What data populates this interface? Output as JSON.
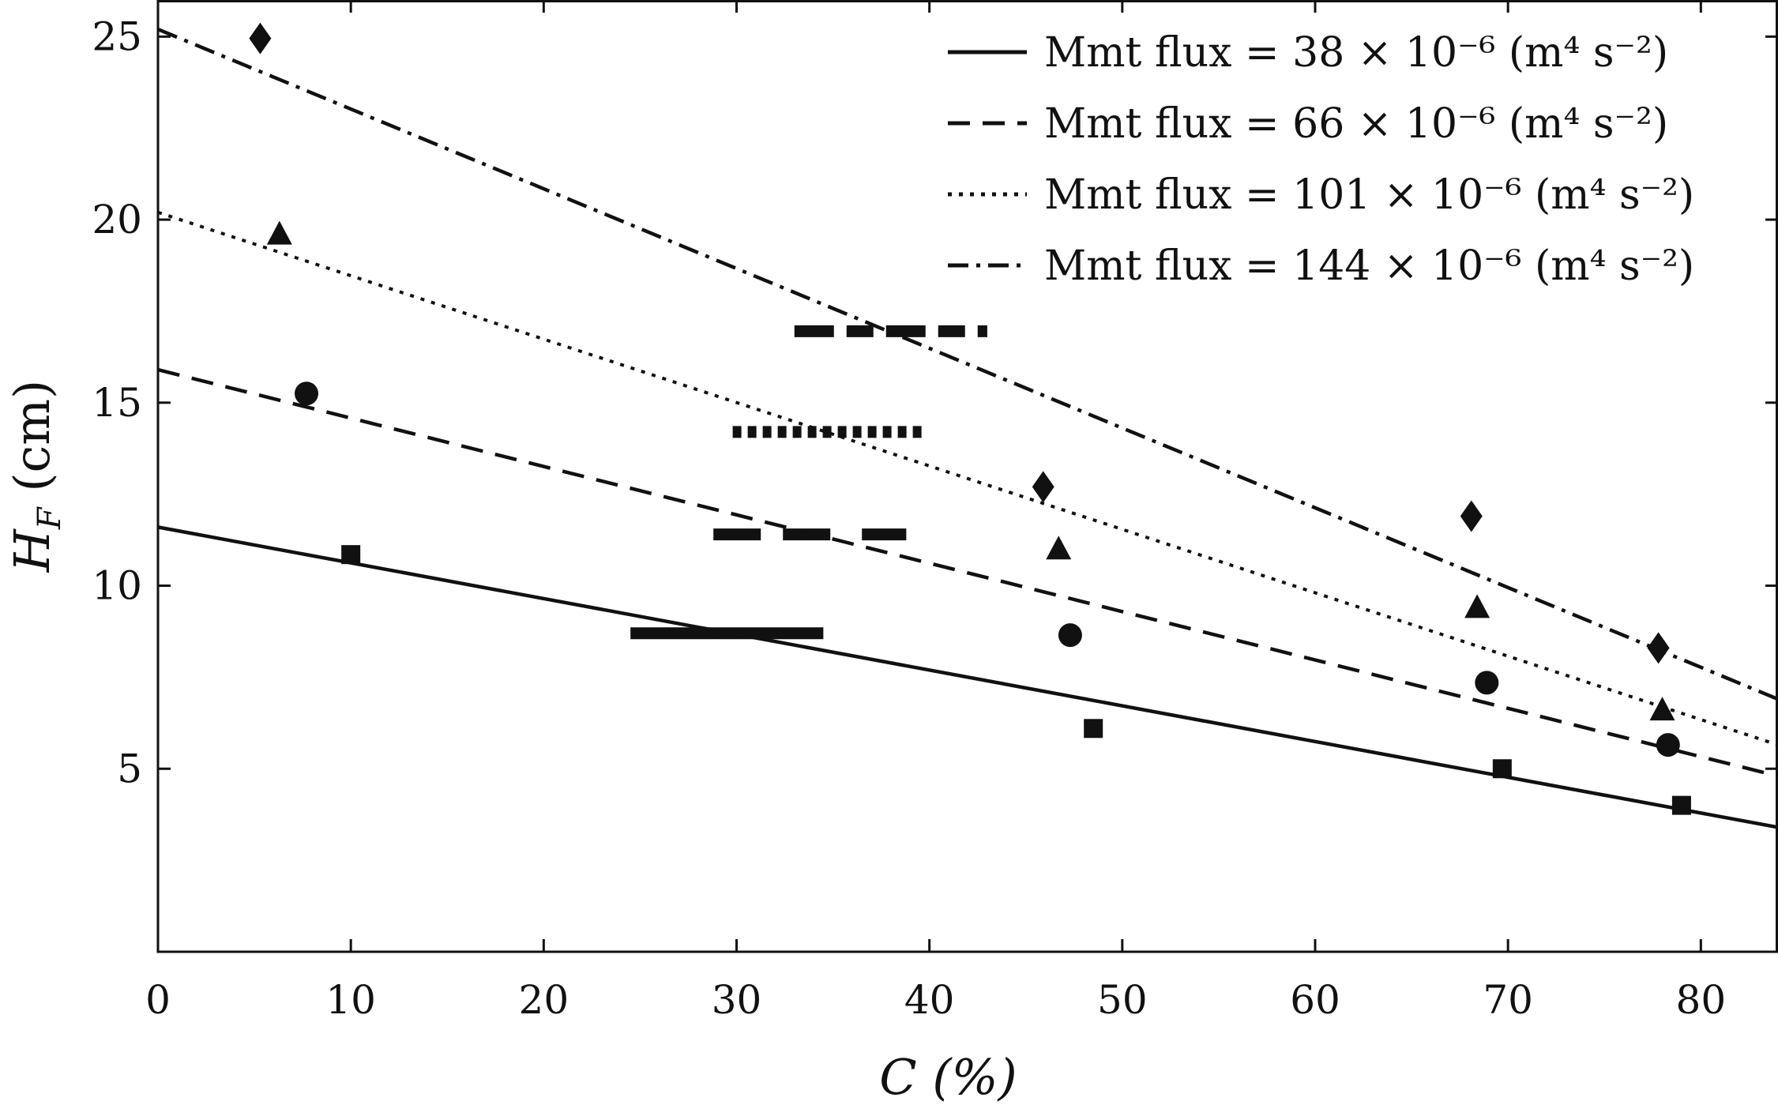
{
  "chart_data": {
    "type": "scatter",
    "xlabel": "C (%)",
    "ylabel": "H_F (cm)",
    "xlim": [
      0,
      84
    ],
    "ylim": [
      0,
      26
    ],
    "xticks": [
      0,
      10,
      20,
      30,
      40,
      50,
      60,
      70,
      80
    ],
    "yticks": [
      5,
      10,
      15,
      20,
      25
    ],
    "grid": false,
    "legend_position": "top-right",
    "series": [
      {
        "name": "Mmt  flux = 38 × 10⁻⁶ (m⁴  s⁻²)",
        "line_style": "solid",
        "marker": "square",
        "fit_line": {
          "x": [
            0,
            84
          ],
          "y": [
            11.6,
            3.4
          ]
        },
        "points": [
          {
            "x": 10.0,
            "y": 10.85
          },
          {
            "x": 48.5,
            "y": 6.1
          },
          {
            "x": 69.7,
            "y": 5.0
          },
          {
            "x": 79.0,
            "y": 4.0
          }
        ]
      },
      {
        "name": "Mmt  flux = 66 × 10⁻⁶ (m⁴  s⁻²)",
        "line_style": "dashed",
        "marker": "circle",
        "fit_line": {
          "x": [
            0,
            84
          ],
          "y": [
            15.9,
            4.8
          ]
        },
        "points": [
          {
            "x": 7.7,
            "y": 15.25
          },
          {
            "x": 47.3,
            "y": 8.65
          },
          {
            "x": 68.9,
            "y": 7.35
          },
          {
            "x": 78.3,
            "y": 5.65
          }
        ]
      },
      {
        "name": "Mmt  flux = 101 × 10⁻⁶ (m⁴  s⁻²)",
        "line_style": "dotted",
        "marker": "triangle",
        "fit_line": {
          "x": [
            0,
            84
          ],
          "y": [
            20.2,
            5.65
          ]
        },
        "points": [
          {
            "x": 6.3,
            "y": 19.6
          },
          {
            "x": 46.7,
            "y": 11.0
          },
          {
            "x": 68.4,
            "y": 9.4
          },
          {
            "x": 78.0,
            "y": 6.6
          }
        ]
      },
      {
        "name": "Mmt  flux = 144 × 10⁻⁶ (m⁴  s⁻²)",
        "line_style": "dashdot",
        "marker": "diamond",
        "fit_line": {
          "x": [
            0,
            84
          ],
          "y": [
            25.2,
            6.9
          ]
        },
        "points": [
          {
            "x": 5.3,
            "y": 24.95
          },
          {
            "x": 45.9,
            "y": 12.7
          },
          {
            "x": 68.1,
            "y": 11.9
          },
          {
            "x": 77.8,
            "y": 8.3
          }
        ]
      }
    ],
    "annotation_segments": [
      {
        "style": "solid",
        "x": [
          24.5,
          34.5
        ],
        "y": 8.7
      },
      {
        "style": "dashed",
        "x": [
          28.8,
          38.8
        ],
        "y": 11.4
      },
      {
        "style": "dotted",
        "x": [
          29.8,
          39.8
        ],
        "y": 14.2
      },
      {
        "style": "dashdot",
        "x": [
          33.0,
          43.0
        ],
        "y": 16.95
      }
    ]
  }
}
